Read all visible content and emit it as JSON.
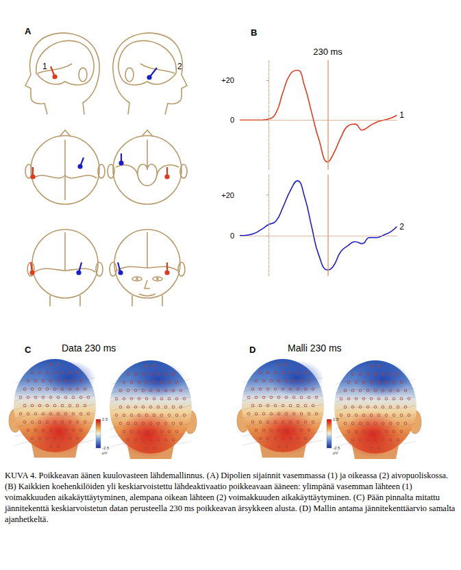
{
  "panel_labels": [
    "A",
    "B",
    "C",
    "D"
  ],
  "panel_a": {
    "dipoles": [
      {
        "label": "1",
        "color": "#e03a1e"
      },
      {
        "label": "2",
        "color": "#1c1cc8"
      }
    ]
  },
  "chart_data": [
    {
      "type": "line",
      "x": [
        -112,
        -84,
        -56,
        -28,
        0,
        28,
        56,
        84,
        112,
        140,
        168,
        196,
        230,
        252,
        280,
        308,
        336,
        364,
        392,
        420,
        448,
        476,
        498
      ],
      "series": [
        {
          "name": "1",
          "color": "#e03a1e",
          "values": [
            0,
            0,
            0,
            0,
            0.5,
            3.4,
            14,
            23,
            25,
            17,
            3.4,
            -10,
            -21,
            -17,
            -9,
            -3,
            -2,
            -5,
            -3,
            -1,
            0,
            1,
            2.4
          ]
        }
      ],
      "xlim": [
        -112,
        500
      ],
      "ylim": [
        -25,
        30
      ],
      "yticks": [
        0,
        {
          "value": 20,
          "label": "+20"
        }
      ],
      "tick_labels": "y",
      "grid": false,
      "markers": [
        {
          "x": 0,
          "line_style": "dashed"
        },
        {
          "x": 230,
          "line_style": "solid",
          "label": "230 ms"
        },
        {
          "y": 0,
          "line_style": "dotted"
        }
      ]
    },
    {
      "type": "line",
      "x": [
        -112,
        -84,
        -56,
        -28,
        0,
        28,
        56,
        84,
        112,
        140,
        168,
        196,
        230,
        252,
        280,
        308,
        336,
        364,
        392,
        420,
        448,
        476,
        498
      ],
      "series": [
        {
          "name": "2",
          "color": "#1c1cc8",
          "values": [
            0,
            0.2,
            1,
            3,
            5.4,
            7,
            14,
            22,
            27,
            19,
            4,
            -10,
            -17,
            -15,
            -8,
            -5,
            -3,
            -4,
            -1,
            -1,
            0.3,
            2,
            4.4
          ]
        }
      ],
      "xlim": [
        -112,
        500
      ],
      "ylim": [
        -20,
        30
      ],
      "yticks": [
        0,
        {
          "value": 20,
          "label": "+20"
        }
      ],
      "tick_labels": "y",
      "grid": false,
      "markers": [
        {
          "x": 0,
          "line_style": "dashed"
        },
        {
          "x": 230,
          "line_style": "solid"
        },
        {
          "y": 0,
          "line_style": "dotted"
        }
      ]
    }
  ],
  "panel_c": {
    "title": "Data 230 ms",
    "colorbar": {
      "range": [
        -2.5,
        2.5
      ],
      "ticks": [
        -2.5,
        2.5
      ],
      "unit": "µV"
    }
  },
  "panel_d": {
    "title": "Malli 230 ms",
    "colorbar": {
      "range": [
        -2.5,
        2.5
      ],
      "ticks": [
        -2.5,
        2.5
      ],
      "unit": "µV"
    }
  },
  "caption": "KUVA 4. Poikkeavan äänen kuulovasteen lähdemallinnus. (A) Dipolien sijainnit vasemmassa (1) ja oikeassa (2) aivopuoliskossa. (B) Kaikkien koehenkilöiden yli keskiarvoistettu lähdeaktivaatio poikkeavaan ääneen: ylimpänä vasemman lähteen (1) voimakkuuden aikakäyttäytyminen, alempana oikean lähteen (2) voimakkuuden aikakäyttäytyminen. (C) Pään pinnalta mitattu jännitekenttä keskiarvoistetun datan perusteella 230 ms poikkeavan ärsykkeen alusta. (D) Mallin antama jännitekenttäarvio samalta ajanhetkeltä."
}
